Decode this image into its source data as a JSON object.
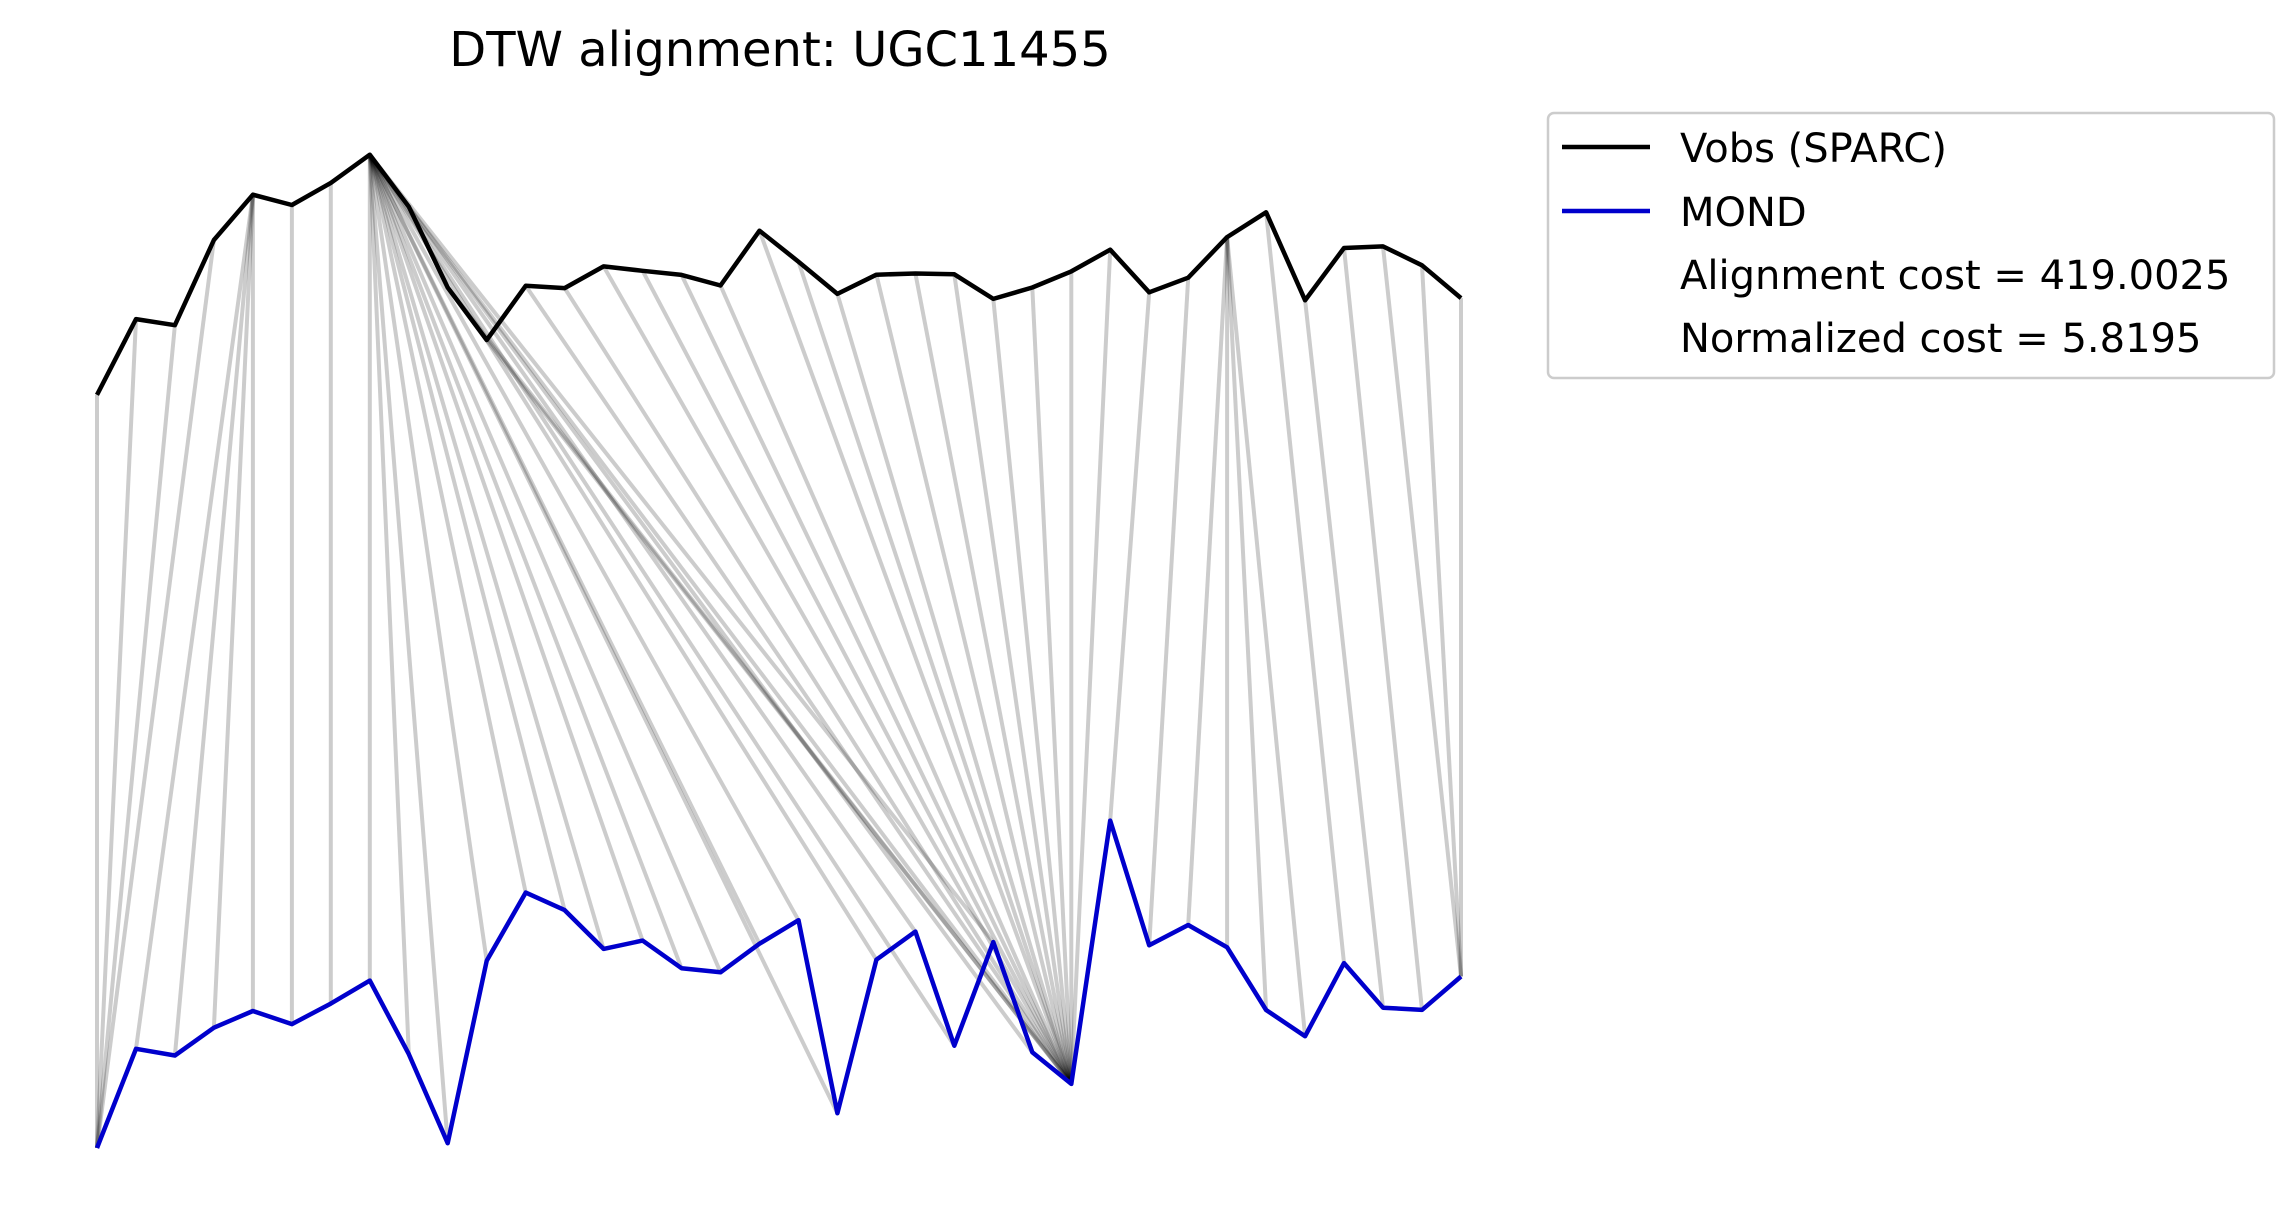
{
  "chart_data": {
    "type": "line",
    "title": "DTW alignment: UGC11455",
    "axes_visible": false,
    "grid": false,
    "legend_placement": "upper-right outside",
    "ylim": [
      0,
      1
    ],
    "series": [
      {
        "name": "Vobs (SPARC)",
        "color": "#000000",
        "x": [
          0,
          1,
          2,
          3,
          4,
          5,
          6,
          7,
          8,
          9,
          10,
          11,
          12,
          13,
          14,
          15,
          16,
          17,
          18,
          19,
          20,
          21,
          22,
          23,
          24,
          25,
          26,
          27,
          28,
          29,
          30,
          31,
          32,
          33,
          34,
          35
        ],
        "values": [
          0.7486,
          0.824,
          0.8179,
          0.9026,
          0.9476,
          0.9374,
          0.9593,
          0.9874,
          0.9357,
          0.8554,
          0.8032,
          0.8571,
          0.8548,
          0.8763,
          0.872,
          0.8679,
          0.8574,
          0.9118,
          0.881,
          0.849,
          0.8681,
          0.8693,
          0.8685,
          0.844,
          0.8554,
          0.8714,
          0.8929,
          0.8506,
          0.8651,
          0.9055,
          0.9301,
          0.8426,
          0.8946,
          0.8962,
          0.8774,
          0.8448
        ]
      },
      {
        "name": "MOND",
        "color": "#0000cc",
        "x": [
          0,
          1,
          2,
          3,
          4,
          5,
          6,
          7,
          8,
          9,
          10,
          11,
          12,
          13,
          14,
          15,
          16,
          17,
          18,
          19,
          20,
          21,
          22,
          23,
          24,
          25,
          26,
          27,
          28,
          29,
          30,
          31,
          32,
          33,
          34,
          35
        ],
        "values": [
          0.0,
          0.0986,
          0.0919,
          0.1196,
          0.1362,
          0.1232,
          0.1435,
          0.1664,
          0.0933,
          0.0048,
          0.1861,
          0.2539,
          0.2365,
          0.1979,
          0.2062,
          0.1787,
          0.1747,
          0.2031,
          0.2264,
          0.0346,
          0.1872,
          0.2151,
          0.1017,
          0.2047,
          0.0951,
          0.0637,
          0.3254,
          0.2015,
          0.2217,
          0.1995,
          0.1372,
          0.1111,
          0.1838,
          0.1395,
          0.1373,
          0.1705
        ]
      }
    ],
    "alignment_path": [
      [
        0,
        0
      ],
      [
        1,
        0
      ],
      [
        2,
        0
      ],
      [
        3,
        0
      ],
      [
        4,
        1
      ],
      [
        4,
        2
      ],
      [
        4,
        3
      ],
      [
        4,
        4
      ],
      [
        5,
        5
      ],
      [
        6,
        6
      ],
      [
        7,
        7
      ],
      [
        7,
        8
      ],
      [
        7,
        9
      ],
      [
        7,
        10
      ],
      [
        7,
        11
      ],
      [
        7,
        12
      ],
      [
        7,
        13
      ],
      [
        7,
        14
      ],
      [
        7,
        15
      ],
      [
        7,
        16
      ],
      [
        7,
        17
      ],
      [
        7,
        18
      ],
      [
        7,
        19
      ],
      [
        7,
        20
      ],
      [
        7,
        21
      ],
      [
        7,
        22
      ],
      [
        7,
        23
      ],
      [
        7,
        24
      ],
      [
        8,
        25
      ],
      [
        9,
        25
      ],
      [
        10,
        25
      ],
      [
        11,
        25
      ],
      [
        12,
        25
      ],
      [
        13,
        25
      ],
      [
        14,
        25
      ],
      [
        15,
        25
      ],
      [
        16,
        25
      ],
      [
        17,
        25
      ],
      [
        18,
        25
      ],
      [
        19,
        25
      ],
      [
        20,
        25
      ],
      [
        21,
        25
      ],
      [
        22,
        25
      ],
      [
        23,
        25
      ],
      [
        24,
        25
      ],
      [
        25,
        25
      ],
      [
        26,
        25
      ],
      [
        27,
        26
      ],
      [
        28,
        27
      ],
      [
        29,
        28
      ],
      [
        29,
        29
      ],
      [
        29,
        30
      ],
      [
        29,
        31
      ],
      [
        30,
        32
      ],
      [
        31,
        33
      ],
      [
        32,
        34
      ],
      [
        33,
        35
      ],
      [
        34,
        35
      ],
      [
        35,
        35
      ]
    ],
    "alignment_color": "#c8c8c8",
    "annotations": [
      "Alignment cost = 419.0025",
      "Normalized cost = 5.8195"
    ]
  }
}
